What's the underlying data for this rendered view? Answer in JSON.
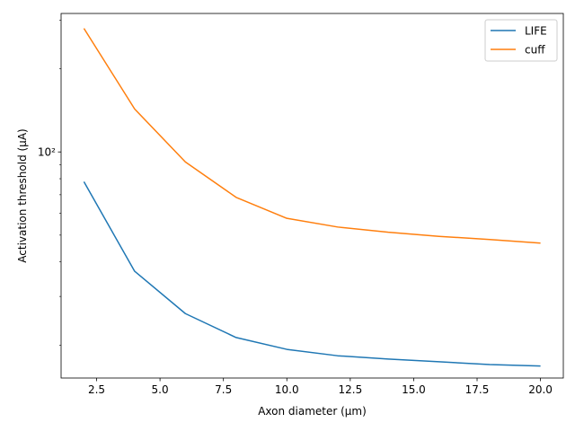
{
  "chart_data": {
    "type": "line",
    "title": "",
    "xlabel": "Axon diameter (µm)",
    "ylabel": "Activation threshold (µA)",
    "x": [
      2,
      4,
      6,
      8,
      10,
      12,
      14,
      16,
      18,
      20
    ],
    "series": [
      {
        "name": "LIFE",
        "color": "#1f77b4",
        "values": [
          78,
          37,
          26,
          21.3,
          19.3,
          18.3,
          17.8,
          17.4,
          17.0,
          16.8
        ]
      },
      {
        "name": "cuff",
        "color": "#ff7f0e",
        "values": [
          280,
          143,
          92,
          68.5,
          57.5,
          53.5,
          51.2,
          49.5,
          48.2,
          46.8
        ]
      }
    ],
    "xlim": [
      1.1,
      20.9
    ],
    "ylim": [
      15.2,
      317
    ],
    "yscale": "log",
    "xticks": [
      2.5,
      5.0,
      7.5,
      10.0,
      12.5,
      15.0,
      17.5,
      20.0
    ],
    "xtick_labels": [
      "2.5",
      "5.0",
      "7.5",
      "10.0",
      "12.5",
      "15.0",
      "17.5",
      "20.0"
    ],
    "yticks_major": [
      100
    ],
    "ytick_labels": [
      "10²"
    ],
    "yticks_minor": [
      20,
      30,
      40,
      50,
      60,
      70,
      80,
      90,
      200,
      300
    ],
    "grid": false,
    "legend_position": "top-right"
  }
}
